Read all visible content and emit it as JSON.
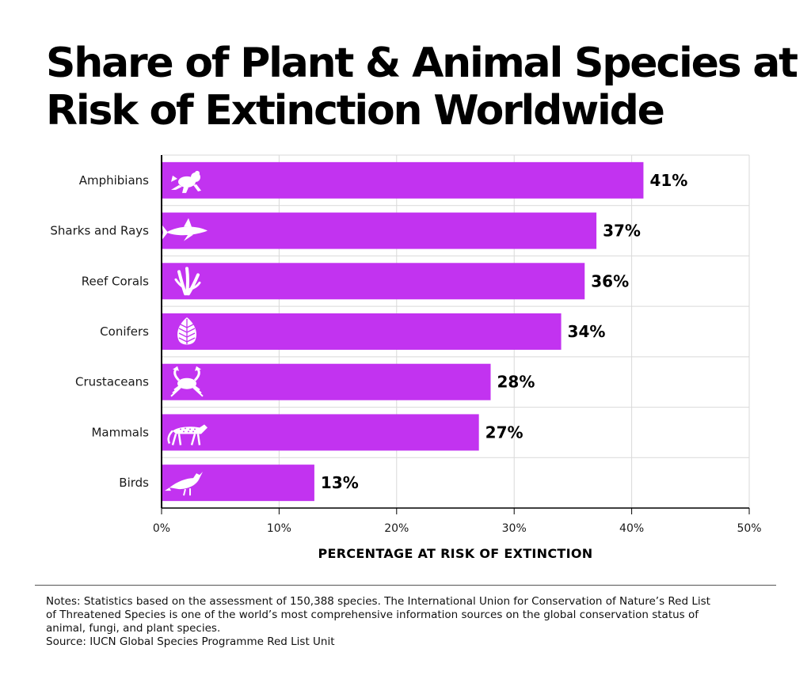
{
  "title": {
    "line1": "Share of Plant & Animal Species at",
    "line2": "Risk of Extinction Worldwide"
  },
  "colors": {
    "bar": "#c233f0",
    "grid": "#d9d9d9",
    "axis": "#000000",
    "icon": "#ffffff"
  },
  "chart_data": {
    "type": "bar",
    "orientation": "horizontal",
    "categories": [
      "Amphibians",
      "Sharks and Rays",
      "Reef Corals",
      "Conifers",
      "Crustaceans",
      "Mammals",
      "Birds"
    ],
    "values": [
      41,
      37,
      36,
      34,
      28,
      27,
      13
    ],
    "value_labels": [
      "41%",
      "37%",
      "36%",
      "34%",
      "28%",
      "27%",
      "13%"
    ],
    "icons": [
      "frog-icon",
      "shark-icon",
      "coral-icon",
      "pinecone-icon",
      "crab-icon",
      "cheetah-icon",
      "bird-icon"
    ],
    "xlim": [
      0,
      50
    ],
    "x_ticks": [
      0,
      10,
      20,
      30,
      40,
      50
    ],
    "x_tick_labels": [
      "0%",
      "10%",
      "20%",
      "30%",
      "40%",
      "50%"
    ],
    "xlabel": "PERCENTAGE AT RISK OF EXTINCTION",
    "grid": true
  },
  "notes": {
    "line1": "Notes: Statistics based on the assessment of 150,388 species. The International Union for Conservation of Nature’s Red List",
    "line2": "of Threatened Species is one of the world’s most comprehensive information sources on the global conservation status of",
    "line3": "animal, fungi, and plant species.",
    "source": "Source: IUCN Global Species Programme Red List Unit"
  }
}
